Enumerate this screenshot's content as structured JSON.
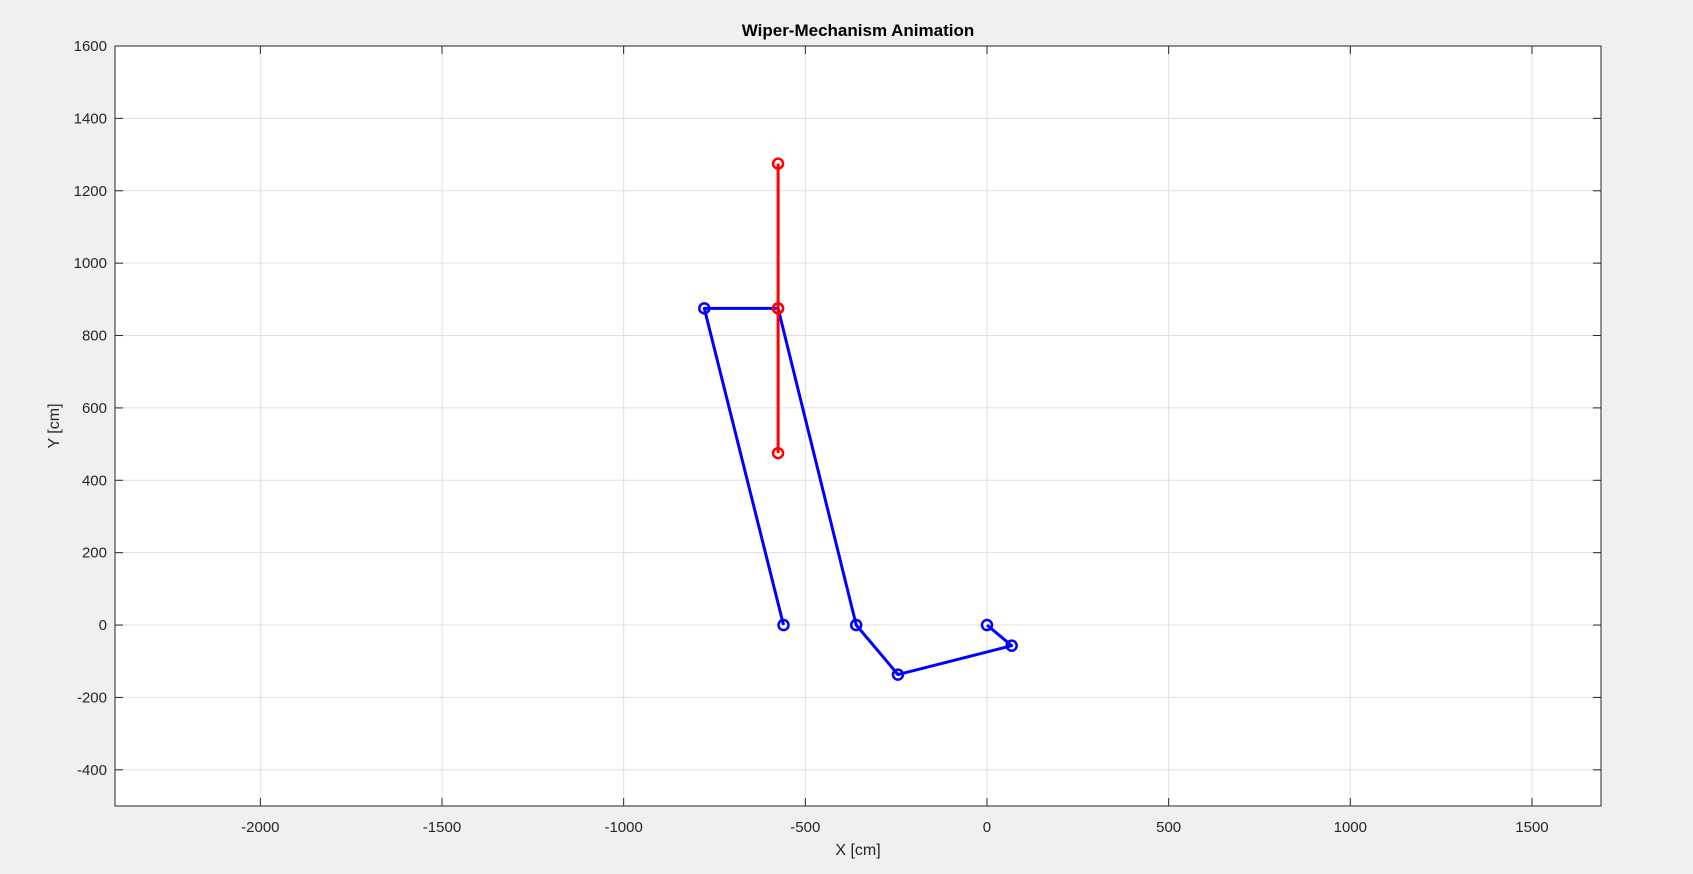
{
  "chart_data": {
    "type": "line",
    "title": "Wiper-Mechanism Animation",
    "xlabel": "X [cm]",
    "ylabel": "Y [cm]",
    "xlim": [
      -2400,
      1690
    ],
    "ylim": [
      -500,
      1600
    ],
    "xticks": [
      -2000,
      -1500,
      -1000,
      -500,
      0,
      500,
      1000,
      1500
    ],
    "yticks": [
      -400,
      -200,
      0,
      200,
      400,
      600,
      800,
      1000,
      1200,
      1400,
      1600
    ],
    "grid": true,
    "series": [
      {
        "color": "#0000ff",
        "marker": "circle",
        "x": [
          0,
          68,
          -245,
          -360,
          -575,
          -778,
          -560
        ],
        "y": [
          0,
          -57,
          -137,
          0,
          875,
          875,
          0
        ]
      },
      {
        "color": "#ff0000",
        "marker": "circle",
        "x": [
          -575,
          -575,
          -575
        ],
        "y": [
          1275,
          875,
          475
        ]
      }
    ]
  },
  "colors": {
    "figure_background": "#f0f0f0",
    "axes_background": "#ffffff",
    "grid": "#dfdfdf",
    "axis_line": "#262626"
  }
}
